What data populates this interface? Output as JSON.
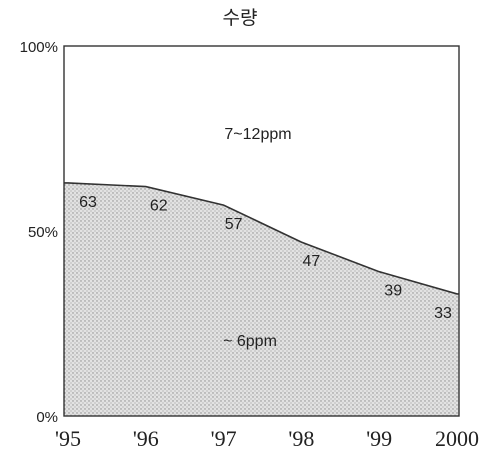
{
  "chart_data": {
    "type": "area",
    "title": "수량",
    "xlabel": "",
    "ylabel": "",
    "categories": [
      "'95",
      "'96",
      "'97",
      "'98",
      "'99",
      "2000"
    ],
    "ylim": [
      0,
      100
    ],
    "y_ticks": [
      "0%",
      "50%",
      "100%"
    ],
    "series": [
      {
        "name": "~ 6ppm",
        "values": [
          63,
          62,
          57,
          47,
          39,
          33
        ]
      }
    ],
    "region_labels": {
      "upper": "7~12ppm",
      "lower": "~ 6ppm"
    },
    "fill_color": "#d6d6d6",
    "line_color": "#333333",
    "grid": false,
    "legend": "none"
  }
}
